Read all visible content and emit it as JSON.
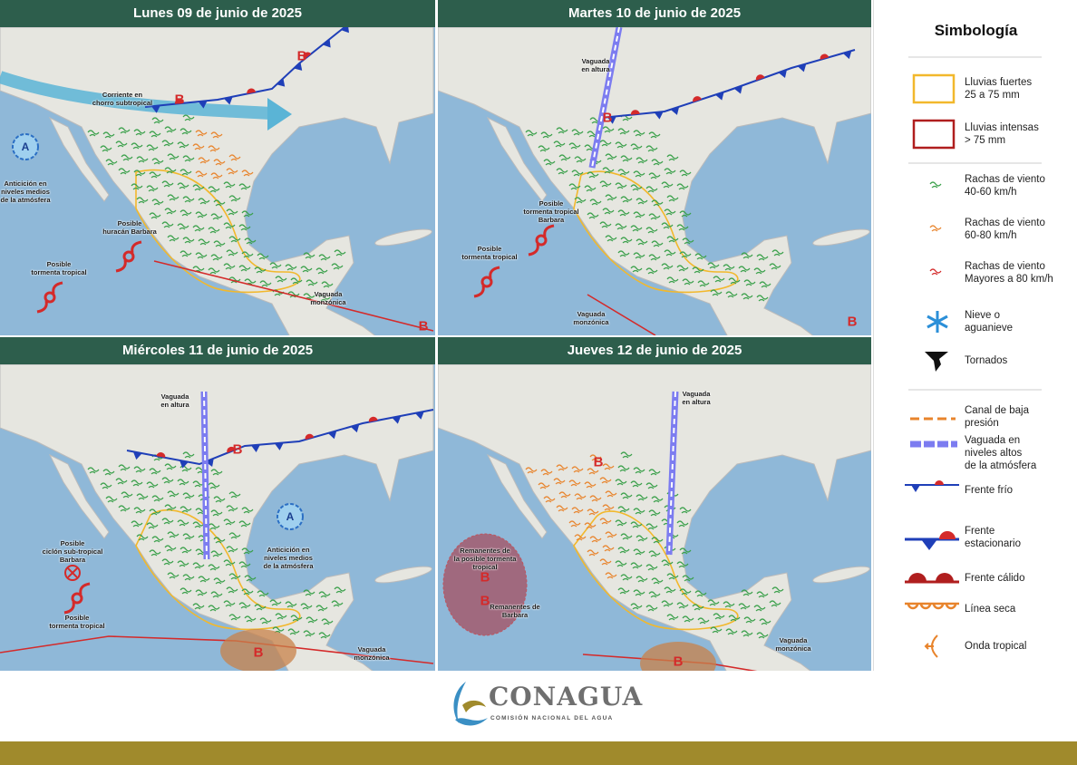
{
  "panels": [
    {
      "title": "Lunes 09 de junio de 2025",
      "labels": [
        [
          "Corriente en",
          "chorro subtropical"
        ],
        [
          "Anticición en",
          "niveles medios",
          "de la atmósfera"
        ],
        [
          "Posible",
          "huracán Barbara"
        ],
        [
          "Posible",
          "tormenta tropical"
        ],
        [
          "Vaguada",
          "monzónica"
        ]
      ],
      "pressure_centers": [
        "B",
        "B",
        "B",
        "A"
      ]
    },
    {
      "title": "Martes 10 de junio de 2025",
      "labels": [
        [
          "Vaguada",
          "en altura"
        ],
        [
          "Posible",
          "tormenta tropical",
          "Barbara"
        ],
        [
          "Posible",
          "tormenta tropical"
        ],
        [
          "Vaguada",
          "monzónica"
        ]
      ],
      "pressure_centers": [
        "B",
        "B"
      ]
    },
    {
      "title": "Miércoles 11 de junio de 2025",
      "labels": [
        [
          "Vaguada",
          "en altura"
        ],
        [
          "Anticición en",
          "niveles medios",
          "de la atmósfera"
        ],
        [
          "Posible",
          "ciclón sub-tropical",
          "Barbara"
        ],
        [
          "Posible",
          "tormenta tropical"
        ],
        [
          "Vaguada",
          "monzónica"
        ]
      ],
      "pressure_centers": [
        "B",
        "B",
        "A"
      ]
    },
    {
      "title": "Jueves 12 de junio de 2025",
      "labels": [
        [
          "Vaguada",
          "en altura"
        ],
        [
          "Remanentes de",
          "la posible tormenta",
          "tropical"
        ],
        [
          "Remanentes de",
          "Barbara"
        ],
        [
          "Vaguada",
          "monzónica"
        ]
      ],
      "pressure_centers": [
        "B",
        "B",
        "B",
        "B"
      ]
    }
  ],
  "legend": {
    "title": "Simbología",
    "items": [
      [
        "Lluvias fuertes",
        "25 a 75 mm"
      ],
      [
        "Lluvias intensas",
        "> 75 mm"
      ],
      [
        "Rachas de viento",
        "40-60 km/h"
      ],
      [
        "Rachas de viento",
        "60-80 km/h"
      ],
      [
        "Rachas de viento",
        "Mayores a 80 km/h"
      ],
      [
        "Nieve o",
        "aguanieve"
      ],
      [
        "Tornados"
      ],
      [
        "Canal de baja",
        "presión"
      ],
      [
        "Vaguada en",
        "niveles altos",
        "de la atmósfera"
      ],
      [
        "Frente frío"
      ],
      [
        "Frente",
        "estacionario"
      ],
      [
        "Frente cálido"
      ],
      [
        "Línea seca"
      ],
      [
        "Onda tropical"
      ]
    ]
  },
  "logo": {
    "name": "CONAGUA",
    "subtitle": "COMISIÓN NACIONAL DEL AGUA"
  }
}
